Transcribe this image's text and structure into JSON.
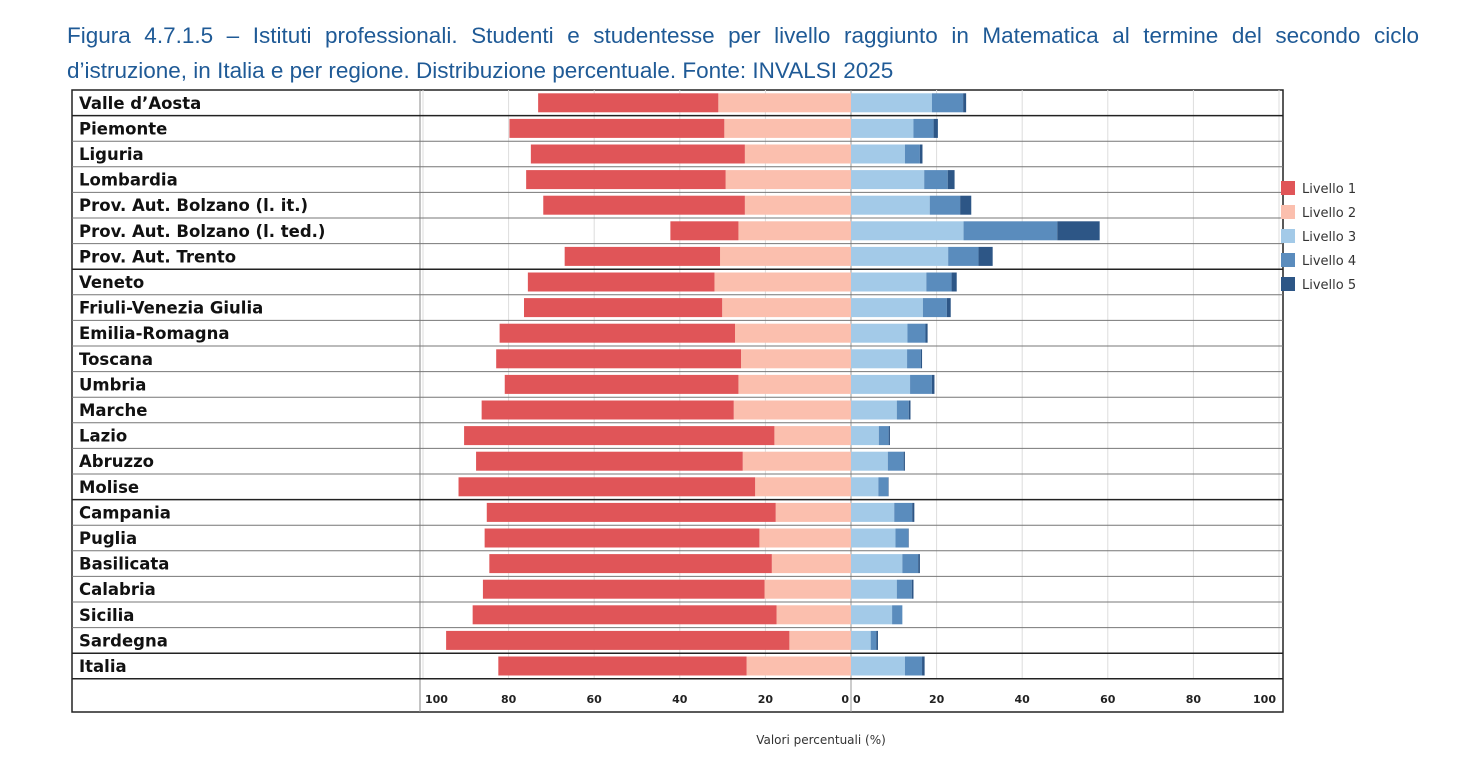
{
  "title": "Figura 4.7.1.5 – Istituti professionali. Studenti e studentesse per livello raggiunto in Matematica al termine del secondo ciclo d’istruzione, in Italia e per regione. Distribuzione percentuale. Fonte: INVALSI 2025",
  "colors": {
    "Livello 1": "#e05558",
    "Livello 2": "#fbbfae",
    "Livello 3": "#a3cae8",
    "Livello 4": "#5a8cbd",
    "Livello 5": "#2d5686"
  },
  "chart_data": {
    "type": "bar",
    "orientation": "horizontal-diverging",
    "xlabel": "Valori percentuali (%)",
    "ylabel": "",
    "left_ticks": [
      "100",
      "80",
      "60",
      "40",
      "20",
      "0"
    ],
    "right_ticks": [
      "0",
      "20",
      "40",
      "60",
      "80",
      "100"
    ],
    "xlim": [
      -100,
      100
    ],
    "grid": true,
    "legend_position": "right",
    "categories": [
      "Valle d’Aosta",
      "Piemonte",
      "Liguria",
      "Lombardia",
      "Prov. Aut. Bolzano (l. it.)",
      "Prov. Aut. Bolzano (l. ted.)",
      "Prov. Aut. Trento",
      "Veneto",
      "Friuli-Venezia Giulia",
      "Emilia-Romagna",
      "Toscana",
      "Umbria",
      "Marche",
      "Lazio",
      "Abruzzo",
      "Molise",
      "Campania",
      "Puglia",
      "Basilicata",
      "Calabria",
      "Sicilia",
      "Sardegna",
      "Italia"
    ],
    "series": [
      {
        "name": "Livello 1",
        "side": "left",
        "values": [
          42.1,
          50.2,
          50.0,
          46.6,
          47.1,
          15.9,
          36.3,
          43.6,
          46.3,
          55.0,
          57.2,
          54.6,
          58.9,
          72.5,
          62.3,
          69.3,
          67.5,
          64.2,
          66.0,
          65.8,
          71.0,
          80.2,
          58.0
        ]
      },
      {
        "name": "Livello 2",
        "side": "left",
        "values": [
          31.0,
          29.6,
          24.8,
          29.3,
          24.8,
          26.3,
          30.6,
          31.9,
          30.1,
          27.1,
          25.7,
          26.3,
          27.4,
          17.9,
          25.3,
          22.4,
          17.6,
          21.4,
          18.5,
          20.2,
          17.4,
          14.4,
          24.4
        ]
      },
      {
        "name": "Livello 3",
        "side": "right",
        "values": [
          18.9,
          14.6,
          12.6,
          17.1,
          18.4,
          26.3,
          22.7,
          17.6,
          16.8,
          13.2,
          13.1,
          13.8,
          10.7,
          6.5,
          8.6,
          6.4,
          10.1,
          10.4,
          12.0,
          10.7,
          9.6,
          4.6,
          12.6
        ]
      },
      {
        "name": "Livello 4",
        "side": "right",
        "values": [
          7.3,
          4.7,
          3.5,
          5.5,
          7.1,
          21.9,
          7.1,
          5.9,
          5.6,
          4.2,
          3.2,
          5.1,
          2.8,
          2.3,
          3.7,
          2.3,
          4.2,
          3.0,
          3.7,
          3.5,
          2.4,
          1.3,
          4.0
        ]
      },
      {
        "name": "Livello 5",
        "side": "right",
        "values": [
          0.7,
          1.0,
          0.6,
          1.6,
          2.6,
          9.9,
          3.3,
          1.2,
          0.9,
          0.5,
          0.3,
          0.6,
          0.4,
          0.3,
          0.3,
          0.1,
          0.5,
          0.1,
          0.4,
          0.4,
          0.0,
          0.4,
          0.6
        ]
      }
    ]
  }
}
